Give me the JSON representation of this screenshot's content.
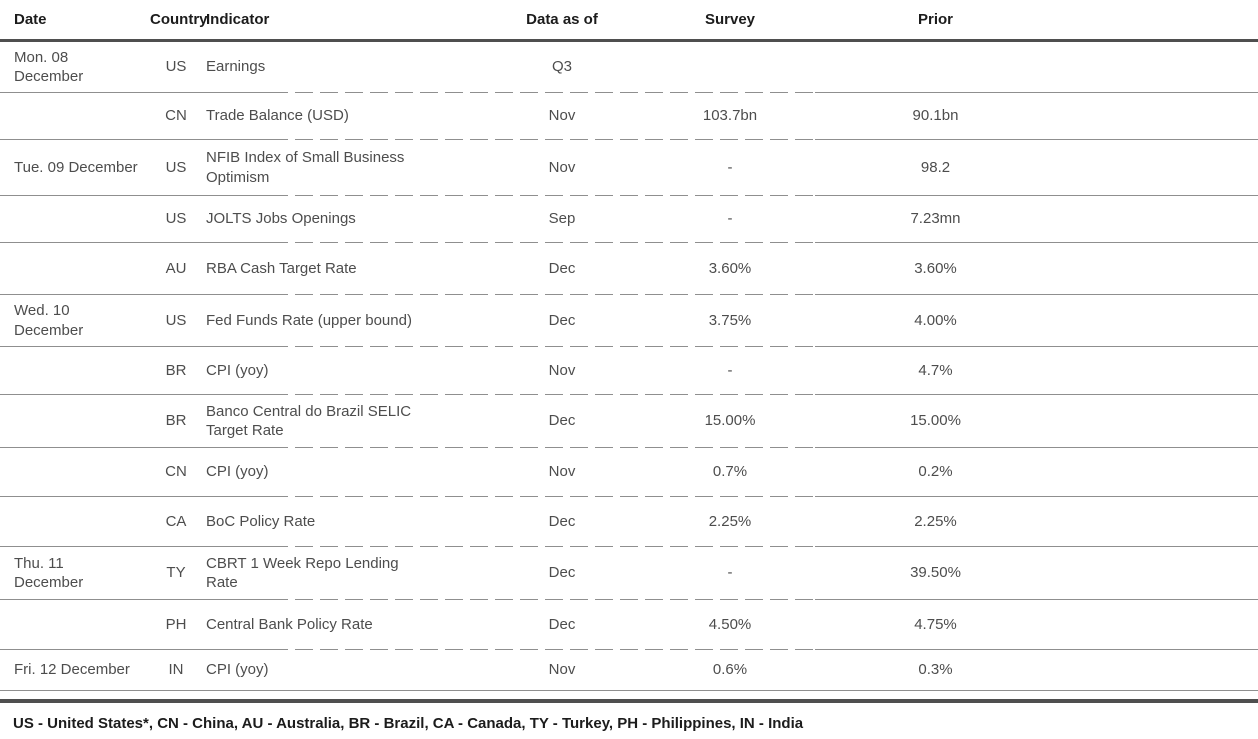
{
  "table": {
    "columns": [
      "Date",
      "Country",
      "Indicator",
      "Data as of",
      "Survey",
      "Prior"
    ],
    "rows": [
      {
        "date": [
          "Mon. 08",
          "December"
        ],
        "country": "US",
        "indicator": [
          "Earnings"
        ],
        "data_as_of": "Q3",
        "survey": "",
        "prior": ""
      },
      {
        "date": [],
        "country": "CN",
        "indicator": [
          "Trade Balance (USD)"
        ],
        "data_as_of": "Nov",
        "survey": "103.7bn",
        "prior": "90.1bn"
      },
      {
        "date": [
          "Tue. 09 December"
        ],
        "country": "US",
        "indicator": [
          "NFIB Index of Small Business",
          "Optimism"
        ],
        "data_as_of": "Nov",
        "survey": "-",
        "prior": "98.2"
      },
      {
        "date": [],
        "country": "US",
        "indicator": [
          "JOLTS Jobs Openings"
        ],
        "data_as_of": "Sep",
        "survey": "-",
        "prior": "7.23mn"
      },
      {
        "date": [],
        "country": "AU",
        "indicator": [
          "RBA Cash Target Rate"
        ],
        "data_as_of": "Dec",
        "survey": "3.60%",
        "prior": "3.60%"
      },
      {
        "date": [
          "Wed. 10",
          "December"
        ],
        "country": "US",
        "indicator": [
          "Fed Funds Rate (upper bound)"
        ],
        "data_as_of": "Dec",
        "survey": "3.75%",
        "prior": "4.00%"
      },
      {
        "date": [],
        "country": "BR",
        "indicator": [
          "CPI (yoy)"
        ],
        "data_as_of": "Nov",
        "survey": "-",
        "prior": "4.7%"
      },
      {
        "date": [],
        "country": "BR",
        "indicator": [
          "Banco Central do Brazil SELIC",
          "Target Rate"
        ],
        "data_as_of": "Dec",
        "survey": "15.00%",
        "prior": "15.00%"
      },
      {
        "date": [],
        "country": "CN",
        "indicator": [
          "CPI (yoy)"
        ],
        "data_as_of": "Nov",
        "survey": "0.7%",
        "prior": "0.2%"
      },
      {
        "date": [],
        "country": "CA",
        "indicator": [
          "BoC Policy Rate"
        ],
        "data_as_of": "Dec",
        "survey": "2.25%",
        "prior": "2.25%"
      },
      {
        "date": [
          "Thu. 11",
          "December"
        ],
        "country": "TY",
        "indicator": [
          "CBRT 1 Week Repo Lending",
          "Rate"
        ],
        "data_as_of": "Dec",
        "survey": "-",
        "prior": "39.50%"
      },
      {
        "date": [],
        "country": "PH",
        "indicator": [
          "Central Bank Policy Rate"
        ],
        "data_as_of": "Dec",
        "survey": "4.50%",
        "prior": "4.75%"
      },
      {
        "date": [
          "Fri. 12 December"
        ],
        "country": "IN",
        "indicator": [
          "CPI (yoy)"
        ],
        "data_as_of": "Nov",
        "survey": "0.6%",
        "prior": "0.3%"
      }
    ]
  },
  "footnote": "US - United States*, CN - China, AU - Australia, BR - Brazil, CA - Canada, TY - Turkey, PH - Philippines, IN - India",
  "colors": {
    "rule_dark": "#4f4f4f",
    "rule_light": "#8f8f8f",
    "body_text": "#4d4d4d",
    "header_text": "#1c1c1c"
  }
}
